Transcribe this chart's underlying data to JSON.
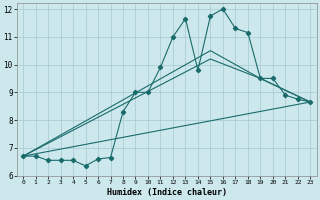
{
  "xlabel": "Humidex (Indice chaleur)",
  "ylabel": "",
  "bg_color": "#cce8ec",
  "grid_color": "#aacdd4",
  "line_color": "#1a6b6b",
  "xlim": [
    -0.5,
    23.5
  ],
  "ylim": [
    6,
    12.2
  ],
  "xticks": [
    0,
    1,
    2,
    3,
    4,
    5,
    6,
    7,
    8,
    9,
    10,
    11,
    12,
    13,
    14,
    15,
    16,
    17,
    18,
    19,
    20,
    21,
    22,
    23
  ],
  "yticks": [
    6,
    7,
    8,
    9,
    10,
    11,
    12
  ],
  "line_main": {
    "x": [
      0,
      1,
      2,
      3,
      4,
      5,
      6,
      7,
      8,
      9,
      10,
      11,
      12,
      13,
      14,
      15,
      16,
      17,
      18,
      19,
      20,
      21,
      22,
      23
    ],
    "y": [
      6.7,
      6.7,
      6.55,
      6.55,
      6.55,
      6.35,
      6.6,
      6.65,
      8.3,
      9.0,
      9.0,
      9.9,
      11.0,
      11.65,
      9.8,
      11.75,
      12.0,
      11.3,
      11.15,
      9.5,
      9.5,
      8.9,
      8.75,
      8.65
    ]
  },
  "line_straight": {
    "x": [
      0,
      23
    ],
    "y": [
      6.7,
      8.65
    ]
  },
  "line_upper": {
    "x": [
      0,
      15,
      19,
      23
    ],
    "y": [
      6.7,
      10.5,
      9.5,
      8.65
    ]
  },
  "line_lower": {
    "x": [
      0,
      15,
      19,
      23
    ],
    "y": [
      6.7,
      10.2,
      9.5,
      8.65
    ]
  }
}
